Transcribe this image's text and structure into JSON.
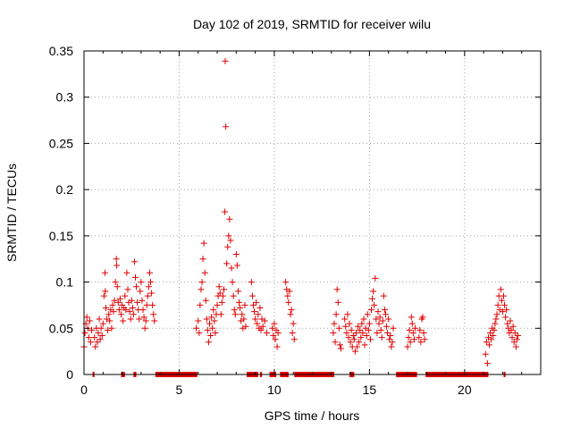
{
  "chart_data": {
    "type": "scatter",
    "title": "Day 102 of 2019, SRMTID for receiver wilu",
    "xlabel": "GPS time / hours",
    "ylabel": "SRMTID / TECUs",
    "xlim": [
      0,
      24
    ],
    "ylim": [
      0,
      0.35
    ],
    "xticks": [
      0,
      5,
      10,
      15,
      20
    ],
    "xtick_labels": [
      "0",
      "5",
      "10",
      "15",
      "20"
    ],
    "yticks": [
      0,
      0.05,
      0.1,
      0.15,
      0.2,
      0.25,
      0.3,
      0.35
    ],
    "ytick_labels": [
      "0",
      "0.05",
      "0.1",
      "0.15",
      "0.2",
      "0.25",
      "0.3",
      "0.35"
    ],
    "grid": true,
    "marker": "+",
    "color": "#e00000",
    "series": [
      {
        "name": "SRMTID",
        "points": [
          [
            0.0,
            0.03
          ],
          [
            0.05,
            0.045
          ],
          [
            0.1,
            0.055
          ],
          [
            0.15,
            0.062
          ],
          [
            0.2,
            0.05
          ],
          [
            0.25,
            0.04
          ],
          [
            0.3,
            0.058
          ],
          [
            0.35,
            0.035
          ],
          [
            0.4,
            0.048
          ],
          [
            0.55,
            0.04
          ],
          [
            0.6,
            0.03
          ],
          [
            0.65,
            0.05
          ],
          [
            0.7,
            0.035
          ],
          [
            0.75,
            0.045
          ],
          [
            0.8,
            0.06
          ],
          [
            0.85,
            0.038
          ],
          [
            0.9,
            0.05
          ],
          [
            0.95,
            0.042
          ],
          [
            1.0,
            0.055
          ],
          [
            1.05,
            0.085
          ],
          [
            1.1,
            0.11
          ],
          [
            1.12,
            0.09
          ],
          [
            1.15,
            0.072
          ],
          [
            1.2,
            0.06
          ],
          [
            1.25,
            0.048
          ],
          [
            1.3,
            0.065
          ],
          [
            1.35,
            0.058
          ],
          [
            1.4,
            0.07
          ],
          [
            1.45,
            0.05
          ],
          [
            1.5,
            0.075
          ],
          [
            1.55,
            0.068
          ],
          [
            1.6,
            0.08
          ],
          [
            1.65,
            0.1
          ],
          [
            1.7,
            0.125
          ],
          [
            1.72,
            0.118
          ],
          [
            1.75,
            0.095
          ],
          [
            1.8,
            0.078
          ],
          [
            1.85,
            0.07
          ],
          [
            1.9,
            0.082
          ],
          [
            1.95,
            0.065
          ],
          [
            2.0,
            0.075
          ],
          [
            2.05,
            0.058
          ],
          [
            2.1,
            0.072
          ],
          [
            2.15,
            0.085
          ],
          [
            2.2,
            0.07
          ],
          [
            2.25,
            0.11
          ],
          [
            2.3,
            0.092
          ],
          [
            2.35,
            0.078
          ],
          [
            2.4,
            0.068
          ],
          [
            2.45,
            0.06
          ],
          [
            2.5,
            0.08
          ],
          [
            2.55,
            0.072
          ],
          [
            2.6,
            0.065
          ],
          [
            2.65,
            0.122
          ],
          [
            2.7,
            0.105
          ],
          [
            2.75,
            0.095
          ],
          [
            2.8,
            0.078
          ],
          [
            2.85,
            0.07
          ],
          [
            2.9,
            0.06
          ],
          [
            2.95,
            0.09
          ],
          [
            3.0,
            0.1
          ],
          [
            3.05,
            0.08
          ],
          [
            3.1,
            0.07
          ],
          [
            3.15,
            0.062
          ],
          [
            3.2,
            0.05
          ],
          [
            3.25,
            0.058
          ],
          [
            3.3,
            0.075
          ],
          [
            3.35,
            0.085
          ],
          [
            3.4,
            0.095
          ],
          [
            3.45,
            0.11
          ],
          [
            3.5,
            0.1
          ],
          [
            3.55,
            0.088
          ],
          [
            3.6,
            0.075
          ],
          [
            3.65,
            0.065
          ],
          [
            3.7,
            0.058
          ],
          [
            5.9,
            0.05
          ],
          [
            6.0,
            0.058
          ],
          [
            6.05,
            0.045
          ],
          [
            6.1,
            0.075
          ],
          [
            6.15,
            0.092
          ],
          [
            6.2,
            0.1
          ],
          [
            6.25,
            0.125
          ],
          [
            6.3,
            0.142
          ],
          [
            6.35,
            0.11
          ],
          [
            6.4,
            0.08
          ],
          [
            6.45,
            0.06
          ],
          [
            6.5,
            0.048
          ],
          [
            6.55,
            0.035
          ],
          [
            6.6,
            0.055
          ],
          [
            6.65,
            0.042
          ],
          [
            6.7,
            0.062
          ],
          [
            6.75,
            0.05
          ],
          [
            6.8,
            0.07
          ],
          [
            6.85,
            0.058
          ],
          [
            6.9,
            0.045
          ],
          [
            6.95,
            0.065
          ],
          [
            7.0,
            0.075
          ],
          [
            7.05,
            0.085
          ],
          [
            7.1,
            0.095
          ],
          [
            7.15,
            0.088
          ],
          [
            7.2,
            0.065
          ],
          [
            7.25,
            0.078
          ],
          [
            7.3,
            0.085
          ],
          [
            7.35,
            0.092
          ],
          [
            7.4,
            0.176
          ],
          [
            7.42,
            0.339
          ],
          [
            7.45,
            0.268
          ],
          [
            7.5,
            0.12
          ],
          [
            7.55,
            0.138
          ],
          [
            7.6,
            0.15
          ],
          [
            7.65,
            0.168
          ],
          [
            7.7,
            0.145
          ],
          [
            7.75,
            0.115
          ],
          [
            7.8,
            0.1
          ],
          [
            7.85,
            0.085
          ],
          [
            7.9,
            0.07
          ],
          [
            7.95,
            0.065
          ],
          [
            8.0,
            0.13
          ],
          [
            8.05,
            0.118
          ],
          [
            8.1,
            0.09
          ],
          [
            8.15,
            0.078
          ],
          [
            8.2,
            0.072
          ],
          [
            8.25,
            0.058
          ],
          [
            8.3,
            0.065
          ],
          [
            8.35,
            0.05
          ],
          [
            8.4,
            0.06
          ],
          [
            8.45,
            0.075
          ],
          [
            8.5,
            0.052
          ],
          [
            8.8,
            0.1
          ],
          [
            8.85,
            0.085
          ],
          [
            8.9,
            0.075
          ],
          [
            8.95,
            0.068
          ],
          [
            9.0,
            0.06
          ],
          [
            9.05,
            0.078
          ],
          [
            9.1,
            0.055
          ],
          [
            9.15,
            0.065
          ],
          [
            9.2,
            0.05
          ],
          [
            9.25,
            0.072
          ],
          [
            9.3,
            0.048
          ],
          [
            9.35,
            0.06
          ],
          [
            9.4,
            0.052
          ],
          [
            9.5,
            0.058
          ],
          [
            9.6,
            0.045
          ],
          [
            9.9,
            0.05
          ],
          [
            9.95,
            0.042
          ],
          [
            10.0,
            0.055
          ],
          [
            10.05,
            0.038
          ],
          [
            10.1,
            0.048
          ],
          [
            10.15,
            0.03
          ],
          [
            10.2,
            0.045
          ],
          [
            10.6,
            0.1
          ],
          [
            10.65,
            0.092
          ],
          [
            10.7,
            0.085
          ],
          [
            10.75,
            0.078
          ],
          [
            10.8,
            0.09
          ],
          [
            10.85,
            0.065
          ],
          [
            10.9,
            0.07
          ],
          [
            10.95,
            0.045
          ],
          [
            11.0,
            0.055
          ],
          [
            11.05,
            0.038
          ],
          [
            13.1,
            0.045
          ],
          [
            13.15,
            0.055
          ],
          [
            13.2,
            0.035
          ],
          [
            13.25,
            0.065
          ],
          [
            13.3,
            0.092
          ],
          [
            13.35,
            0.078
          ],
          [
            13.4,
            0.05
          ],
          [
            13.45,
            0.032
          ],
          [
            13.5,
            0.028
          ],
          [
            13.7,
            0.06
          ],
          [
            13.75,
            0.052
          ],
          [
            13.8,
            0.045
          ],
          [
            13.85,
            0.065
          ],
          [
            13.9,
            0.04
          ],
          [
            13.95,
            0.055
          ],
          [
            14.0,
            0.035
          ],
          [
            14.05,
            0.048
          ],
          [
            14.1,
            0.03
          ],
          [
            14.15,
            0.042
          ],
          [
            14.2,
            0.038
          ],
          [
            14.25,
            0.025
          ],
          [
            14.3,
            0.045
          ],
          [
            14.35,
            0.03
          ],
          [
            14.4,
            0.052
          ],
          [
            14.45,
            0.035
          ],
          [
            14.5,
            0.048
          ],
          [
            14.55,
            0.04
          ],
          [
            14.6,
            0.055
          ],
          [
            14.65,
            0.045
          ],
          [
            14.7,
            0.06
          ],
          [
            14.75,
            0.032
          ],
          [
            14.8,
            0.05
          ],
          [
            14.85,
            0.042
          ],
          [
            14.9,
            0.065
          ],
          [
            14.95,
            0.048
          ],
          [
            15.0,
            0.055
          ],
          [
            15.05,
            0.038
          ],
          [
            15.1,
            0.07
          ],
          [
            15.15,
            0.082
          ],
          [
            15.2,
            0.09
          ],
          [
            15.25,
            0.075
          ],
          [
            15.3,
            0.104
          ],
          [
            15.35,
            0.06
          ],
          [
            15.4,
            0.045
          ],
          [
            15.45,
            0.068
          ],
          [
            15.5,
            0.055
          ],
          [
            15.55,
            0.062
          ],
          [
            15.6,
            0.048
          ],
          [
            15.65,
            0.04
          ],
          [
            15.7,
            0.058
          ],
          [
            15.75,
            0.085
          ],
          [
            15.8,
            0.07
          ],
          [
            15.85,
            0.065
          ],
          [
            15.9,
            0.052
          ],
          [
            15.95,
            0.045
          ],
          [
            16.0,
            0.06
          ],
          [
            16.05,
            0.038
          ],
          [
            16.1,
            0.042
          ],
          [
            16.15,
            0.03
          ],
          [
            16.2,
            0.035
          ],
          [
            16.25,
            0.05
          ],
          [
            17.0,
            0.03
          ],
          [
            17.05,
            0.04
          ],
          [
            17.1,
            0.048
          ],
          [
            17.15,
            0.035
          ],
          [
            17.2,
            0.062
          ],
          [
            17.25,
            0.055
          ],
          [
            17.3,
            0.045
          ],
          [
            17.35,
            0.038
          ],
          [
            17.4,
            0.05
          ],
          [
            17.6,
            0.04
          ],
          [
            17.65,
            0.048
          ],
          [
            17.7,
            0.035
          ],
          [
            17.75,
            0.06
          ],
          [
            17.8,
            0.062
          ],
          [
            17.85,
            0.045
          ],
          [
            17.9,
            0.038
          ],
          [
            21.1,
            0.022
          ],
          [
            21.15,
            0.035
          ],
          [
            21.2,
            0.012
          ],
          [
            21.25,
            0.04
          ],
          [
            21.3,
            0.032
          ],
          [
            21.35,
            0.045
          ],
          [
            21.4,
            0.038
          ],
          [
            21.45,
            0.05
          ],
          [
            21.5,
            0.042
          ],
          [
            21.55,
            0.048
          ],
          [
            21.6,
            0.055
          ],
          [
            21.65,
            0.06
          ],
          [
            21.7,
            0.065
          ],
          [
            21.75,
            0.075
          ],
          [
            21.8,
            0.085
          ],
          [
            21.85,
            0.07
          ],
          [
            21.9,
            0.092
          ],
          [
            21.95,
            0.08
          ],
          [
            22.0,
            0.068
          ],
          [
            22.05,
            0.085
          ],
          [
            22.1,
            0.075
          ],
          [
            22.15,
            0.062
          ],
          [
            22.2,
            0.07
          ],
          [
            22.25,
            0.055
          ],
          [
            22.3,
            0.05
          ],
          [
            22.35,
            0.045
          ],
          [
            22.4,
            0.058
          ],
          [
            22.45,
            0.048
          ],
          [
            22.5,
            0.04
          ],
          [
            22.55,
            0.052
          ],
          [
            22.6,
            0.035
          ],
          [
            22.65,
            0.045
          ],
          [
            22.7,
            0.03
          ],
          [
            22.75,
            0.038
          ],
          [
            22.8,
            0.042
          ]
        ]
      }
    ],
    "zero_segments": [
      [
        0.45,
        0.55
      ],
      [
        1.95,
        2.15
      ],
      [
        2.6,
        2.75
      ],
      [
        3.75,
        5.95
      ],
      [
        8.55,
        9.15
      ],
      [
        9.25,
        9.35
      ],
      [
        9.75,
        10.1
      ],
      [
        10.3,
        10.75
      ],
      [
        11.05,
        13.15
      ],
      [
        13.95,
        14.2
      ],
      [
        16.4,
        17.5
      ],
      [
        17.95,
        21.25
      ],
      [
        22.05,
        22.15
      ]
    ]
  }
}
